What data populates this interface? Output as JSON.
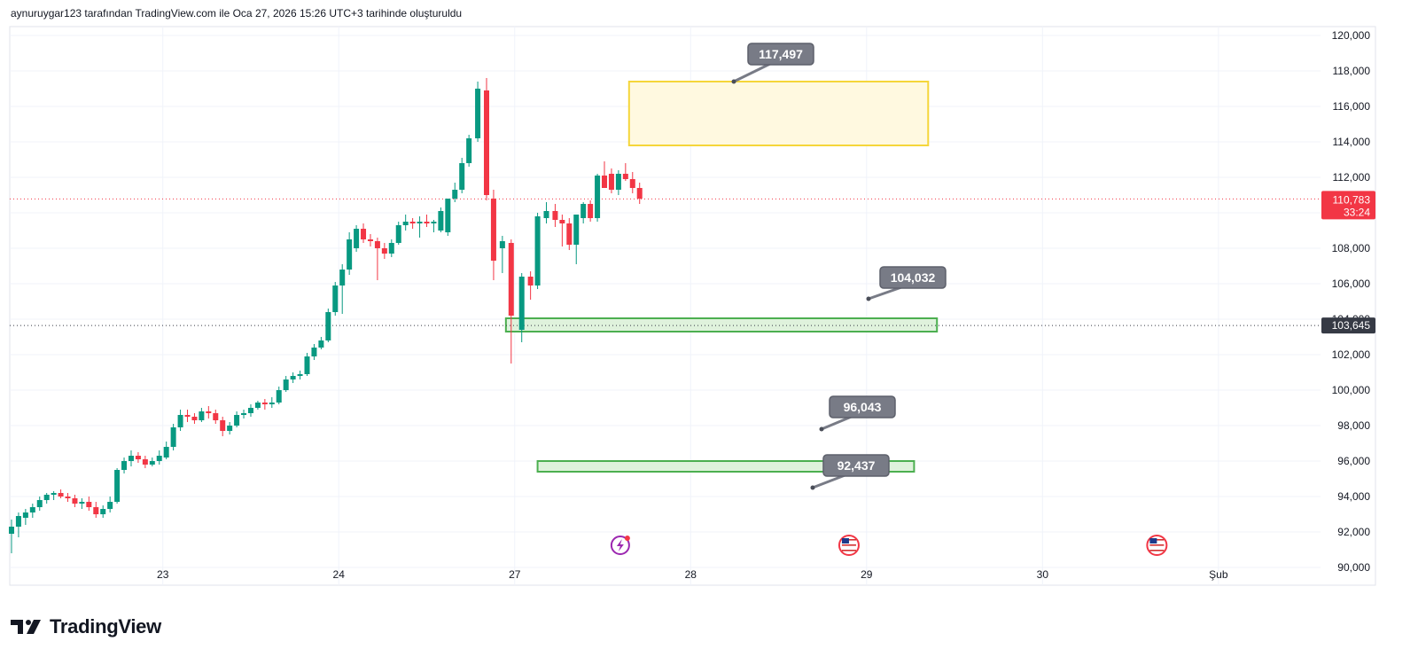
{
  "header": {
    "caption": "aynuruygar123 tarafından TradingView.com ile Oca 27, 2026 15:26 UTC+3 tarihinde oluşturuldu"
  },
  "brand": {
    "name": "TradingView",
    "logo_icon": "tradingview-logo-icon"
  },
  "colors": {
    "up": "#089981",
    "down": "#f23645",
    "grid": "#f0f3fa",
    "yellow_zone_fill": "#fff9e0",
    "yellow_zone_stroke": "#f5d63a",
    "green_zone_fill": "#dff2dc",
    "green_zone_stroke": "#4caf50",
    "callout": "#787b86",
    "axis_text": "#131722"
  },
  "chart_data": {
    "type": "candlestick",
    "y_axis_ticks": [
      "120,000",
      "118,000",
      "116,000",
      "114,000",
      "112,000",
      "110,000",
      "108,000",
      "106,000",
      "104,000",
      "102,000",
      "100,000",
      "98,000",
      "96,000",
      "94,000",
      "92,000",
      "90,000"
    ],
    "ylim": [
      89000,
      120500
    ],
    "x_axis_labels": [
      {
        "label": "23",
        "day": 1
      },
      {
        "label": "24",
        "day": 2
      },
      {
        "label": "27",
        "day": 3
      },
      {
        "label": "28",
        "day": 4
      },
      {
        "label": "29",
        "day": 5
      },
      {
        "label": "30",
        "day": 6
      },
      {
        "label": "Şub",
        "day": 7
      }
    ],
    "xlim_days": [
      0.13,
      7.58
    ],
    "grid": true,
    "last_price": {
      "value": 110783,
      "label": "110,783",
      "countdown": "33:24",
      "color": "#f23645"
    },
    "marked_level": {
      "value": 103645,
      "label": "103,645",
      "color": "#363a45"
    },
    "callouts": [
      {
        "label": "117,497",
        "value": 117497
      },
      {
        "label": "104,032",
        "value": 104032
      },
      {
        "label": "96,043",
        "value": 96043
      },
      {
        "label": "92,437",
        "value": 92437
      }
    ],
    "zones": [
      {
        "name": "supply-zone",
        "top": 117400,
        "bottom": 113800,
        "day_start": 3.65,
        "day_end": 5.35,
        "kind": "yellow"
      },
      {
        "name": "support-zone-104k",
        "top": 104050,
        "bottom": 103300,
        "day_start": 2.95,
        "day_end": 5.4,
        "kind": "green"
      },
      {
        "name": "support-zone-96k",
        "top": 96000,
        "bottom": 95400,
        "day_start": 3.13,
        "day_end": 5.27,
        "kind": "green"
      }
    ],
    "events": [
      {
        "icon": "flash-event-icon",
        "day": 3.6
      },
      {
        "icon": "us-flag-icon",
        "day": 4.9
      },
      {
        "icon": "us-flag-icon",
        "day": 6.65
      }
    ],
    "candles": [
      {
        "d": 0.14,
        "o": 91900,
        "h": 92700,
        "l": 90800,
        "c": 92300
      },
      {
        "d": 0.18,
        "o": 92300,
        "h": 93100,
        "l": 91700,
        "c": 92900
      },
      {
        "d": 0.22,
        "o": 92800,
        "h": 93300,
        "l": 92400,
        "c": 93100
      },
      {
        "d": 0.26,
        "o": 93100,
        "h": 93600,
        "l": 92800,
        "c": 93400
      },
      {
        "d": 0.3,
        "o": 93400,
        "h": 94000,
        "l": 93200,
        "c": 93800
      },
      {
        "d": 0.34,
        "o": 93800,
        "h": 94200,
        "l": 93600,
        "c": 94100
      },
      {
        "d": 0.38,
        "o": 94100,
        "h": 94300,
        "l": 93800,
        "c": 94200
      },
      {
        "d": 0.42,
        "o": 94200,
        "h": 94400,
        "l": 93900,
        "c": 94000
      },
      {
        "d": 0.46,
        "o": 94000,
        "h": 94200,
        "l": 93700,
        "c": 93900
      },
      {
        "d": 0.5,
        "o": 93900,
        "h": 94100,
        "l": 93400,
        "c": 93600
      },
      {
        "d": 0.54,
        "o": 93600,
        "h": 93900,
        "l": 93300,
        "c": 93700
      },
      {
        "d": 0.58,
        "o": 93700,
        "h": 94000,
        "l": 93200,
        "c": 93400
      },
      {
        "d": 0.62,
        "o": 93400,
        "h": 93700,
        "l": 92800,
        "c": 93000
      },
      {
        "d": 0.66,
        "o": 93000,
        "h": 93500,
        "l": 92800,
        "c": 93300
      },
      {
        "d": 0.7,
        "o": 93300,
        "h": 94000,
        "l": 93100,
        "c": 93700
      },
      {
        "d": 0.74,
        "o": 93700,
        "h": 95600,
        "l": 93600,
        "c": 95500
      },
      {
        "d": 0.78,
        "o": 95500,
        "h": 96200,
        "l": 95300,
        "c": 96000
      },
      {
        "d": 0.82,
        "o": 96000,
        "h": 96600,
        "l": 95700,
        "c": 96300
      },
      {
        "d": 0.86,
        "o": 96300,
        "h": 96500,
        "l": 95900,
        "c": 96100
      },
      {
        "d": 0.9,
        "o": 96100,
        "h": 96300,
        "l": 95600,
        "c": 95800
      },
      {
        "d": 0.94,
        "o": 95800,
        "h": 96200,
        "l": 95700,
        "c": 96000
      },
      {
        "d": 0.98,
        "o": 96000,
        "h": 96600,
        "l": 95800,
        "c": 96300
      },
      {
        "d": 1.02,
        "o": 96200,
        "h": 97100,
        "l": 96100,
        "c": 96800
      },
      {
        "d": 1.06,
        "o": 96800,
        "h": 98100,
        "l": 96600,
        "c": 97900
      },
      {
        "d": 1.1,
        "o": 97900,
        "h": 98900,
        "l": 97700,
        "c": 98600
      },
      {
        "d": 1.14,
        "o": 98600,
        "h": 98900,
        "l": 98200,
        "c": 98500
      },
      {
        "d": 1.18,
        "o": 98500,
        "h": 98700,
        "l": 98100,
        "c": 98300
      },
      {
        "d": 1.22,
        "o": 98300,
        "h": 99000,
        "l": 98200,
        "c": 98800
      },
      {
        "d": 1.26,
        "o": 98800,
        "h": 99100,
        "l": 98400,
        "c": 98700
      },
      {
        "d": 1.3,
        "o": 98700,
        "h": 98900,
        "l": 98100,
        "c": 98300
      },
      {
        "d": 1.34,
        "o": 98300,
        "h": 98500,
        "l": 97400,
        "c": 97700
      },
      {
        "d": 1.38,
        "o": 97700,
        "h": 98200,
        "l": 97500,
        "c": 98000
      },
      {
        "d": 1.42,
        "o": 98000,
        "h": 98800,
        "l": 97900,
        "c": 98600
      },
      {
        "d": 1.46,
        "o": 98600,
        "h": 98900,
        "l": 98400,
        "c": 98700
      },
      {
        "d": 1.5,
        "o": 98700,
        "h": 99200,
        "l": 98500,
        "c": 99000
      },
      {
        "d": 1.54,
        "o": 99000,
        "h": 99400,
        "l": 98900,
        "c": 99300
      },
      {
        "d": 1.58,
        "o": 99300,
        "h": 99500,
        "l": 98900,
        "c": 99200
      },
      {
        "d": 1.62,
        "o": 99200,
        "h": 99600,
        "l": 99000,
        "c": 99300
      },
      {
        "d": 1.66,
        "o": 99300,
        "h": 100200,
        "l": 99200,
        "c": 100000
      },
      {
        "d": 1.7,
        "o": 100000,
        "h": 100800,
        "l": 99900,
        "c": 100600
      },
      {
        "d": 1.74,
        "o": 100600,
        "h": 101000,
        "l": 100400,
        "c": 100800
      },
      {
        "d": 1.78,
        "o": 100800,
        "h": 101100,
        "l": 100600,
        "c": 100900
      },
      {
        "d": 1.82,
        "o": 100900,
        "h": 102100,
        "l": 100800,
        "c": 101900
      },
      {
        "d": 1.86,
        "o": 101900,
        "h": 102600,
        "l": 101700,
        "c": 102400
      },
      {
        "d": 1.9,
        "o": 102400,
        "h": 103000,
        "l": 102300,
        "c": 102800
      },
      {
        "d": 1.94,
        "o": 102800,
        "h": 104600,
        "l": 102700,
        "c": 104400
      },
      {
        "d": 1.98,
        "o": 104400,
        "h": 106100,
        "l": 104200,
        "c": 105900
      },
      {
        "d": 2.02,
        "o": 105900,
        "h": 107100,
        "l": 104300,
        "c": 106800
      },
      {
        "d": 2.06,
        "o": 106800,
        "h": 108900,
        "l": 106500,
        "c": 108500
      },
      {
        "d": 2.1,
        "o": 108000,
        "h": 109300,
        "l": 107800,
        "c": 109100
      },
      {
        "d": 2.14,
        "o": 109100,
        "h": 109400,
        "l": 108300,
        "c": 108500
      },
      {
        "d": 2.18,
        "o": 108500,
        "h": 108800,
        "l": 108100,
        "c": 108400
      },
      {
        "d": 2.22,
        "o": 108400,
        "h": 108600,
        "l": 106200,
        "c": 108000
      },
      {
        "d": 2.26,
        "o": 108000,
        "h": 108300,
        "l": 107400,
        "c": 107700
      },
      {
        "d": 2.3,
        "o": 107700,
        "h": 108500,
        "l": 107500,
        "c": 108300
      },
      {
        "d": 2.34,
        "o": 108300,
        "h": 109500,
        "l": 108200,
        "c": 109300
      },
      {
        "d": 2.38,
        "o": 109300,
        "h": 109900,
        "l": 109000,
        "c": 109500
      },
      {
        "d": 2.42,
        "o": 109500,
        "h": 109700,
        "l": 109100,
        "c": 109400
      },
      {
        "d": 2.46,
        "o": 109400,
        "h": 109800,
        "l": 108600,
        "c": 109500
      },
      {
        "d": 2.5,
        "o": 109500,
        "h": 109900,
        "l": 109200,
        "c": 109400
      },
      {
        "d": 2.54,
        "o": 109400,
        "h": 109600,
        "l": 108900,
        "c": 109500
      },
      {
        "d": 2.58,
        "o": 109000,
        "h": 110300,
        "l": 108900,
        "c": 110100
      },
      {
        "d": 2.62,
        "o": 108900,
        "h": 110800,
        "l": 108700,
        "c": 110800
      },
      {
        "d": 2.66,
        "o": 110800,
        "h": 111700,
        "l": 110600,
        "c": 111300
      },
      {
        "d": 2.7,
        "o": 111300,
        "h": 113100,
        "l": 111100,
        "c": 112800
      },
      {
        "d": 2.74,
        "o": 112800,
        "h": 114400,
        "l": 112600,
        "c": 114200
      },
      {
        "d": 2.79,
        "o": 114200,
        "h": 117400,
        "l": 114000,
        "c": 117000
      },
      {
        "d": 2.84,
        "o": 116900,
        "h": 117600,
        "l": 110700,
        "c": 111000
      },
      {
        "d": 2.88,
        "o": 110800,
        "h": 111300,
        "l": 106200,
        "c": 107300
      },
      {
        "d": 2.93,
        "o": 108000,
        "h": 108700,
        "l": 106600,
        "c": 108400
      },
      {
        "d": 2.98,
        "o": 108300,
        "h": 108500,
        "l": 101500,
        "c": 104200
      },
      {
        "d": 3.04,
        "o": 103400,
        "h": 106600,
        "l": 102700,
        "c": 106400
      },
      {
        "d": 3.09,
        "o": 106400,
        "h": 106700,
        "l": 105100,
        "c": 105900
      },
      {
        "d": 3.13,
        "o": 105900,
        "h": 110000,
        "l": 105700,
        "c": 109800
      },
      {
        "d": 3.18,
        "o": 109700,
        "h": 110600,
        "l": 109400,
        "c": 110100
      },
      {
        "d": 3.23,
        "o": 110100,
        "h": 110500,
        "l": 109200,
        "c": 109600
      },
      {
        "d": 3.27,
        "o": 109600,
        "h": 109900,
        "l": 108100,
        "c": 109400
      },
      {
        "d": 3.31,
        "o": 109400,
        "h": 109700,
        "l": 107900,
        "c": 108200
      },
      {
        "d": 3.35,
        "o": 108200,
        "h": 109900,
        "l": 107100,
        "c": 109900
      },
      {
        "d": 3.39,
        "o": 109700,
        "h": 110600,
        "l": 109400,
        "c": 110500
      },
      {
        "d": 3.43,
        "o": 110500,
        "h": 110700,
        "l": 109500,
        "c": 109700
      },
      {
        "d": 3.47,
        "o": 109700,
        "h": 112200,
        "l": 109500,
        "c": 112100
      },
      {
        "d": 3.51,
        "o": 112100,
        "h": 112900,
        "l": 111500,
        "c": 111400
      },
      {
        "d": 3.55,
        "o": 112200,
        "h": 112500,
        "l": 111100,
        "c": 111300
      },
      {
        "d": 3.59,
        "o": 111300,
        "h": 112400,
        "l": 111000,
        "c": 112200
      },
      {
        "d": 3.63,
        "o": 112200,
        "h": 112800,
        "l": 111800,
        "c": 111900
      },
      {
        "d": 3.67,
        "o": 111900,
        "h": 112300,
        "l": 111100,
        "c": 111400
      },
      {
        "d": 3.71,
        "o": 111400,
        "h": 111700,
        "l": 110500,
        "c": 110800
      }
    ]
  }
}
